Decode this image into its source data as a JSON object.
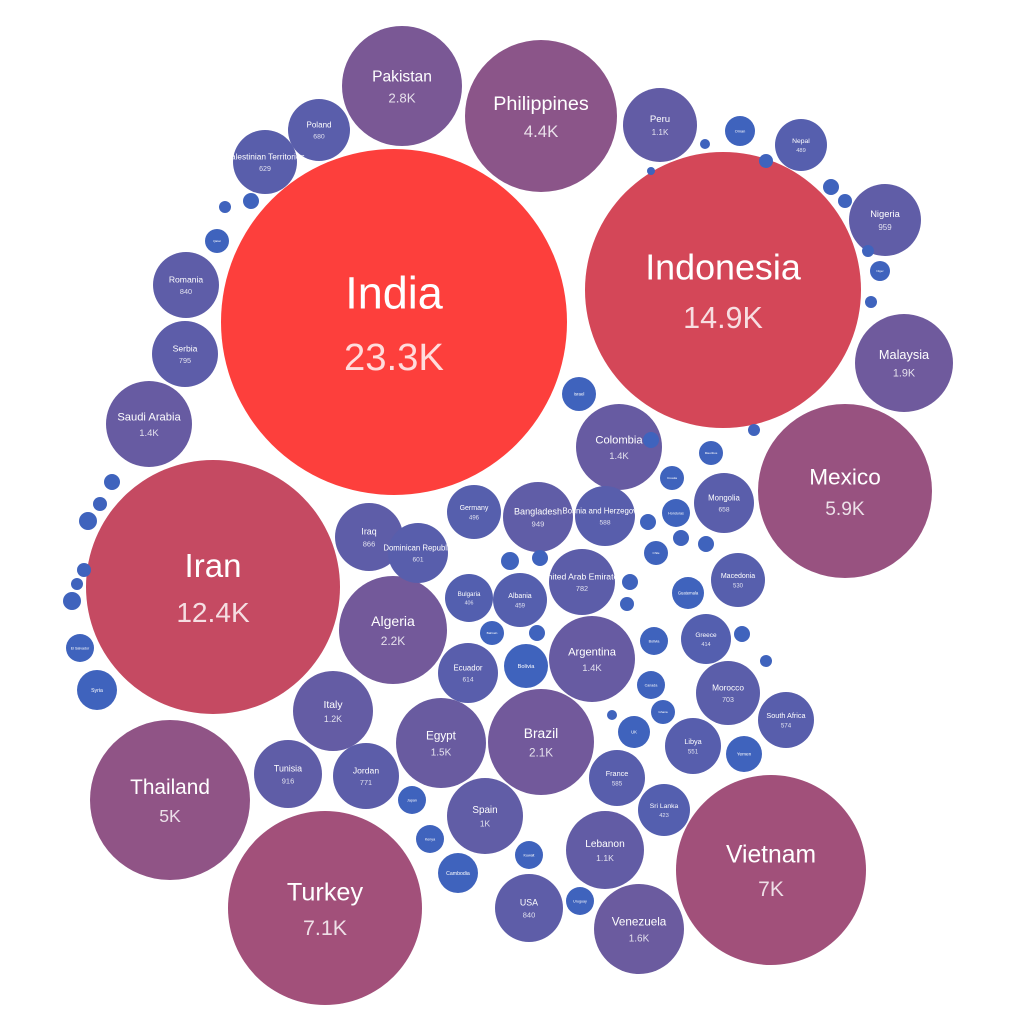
{
  "chart_data": {
    "type": "bubble",
    "title": "",
    "value_format": "K above 1000, 1 decimal, trailing .0 removed",
    "color_scale": {
      "low": "#3f63bd",
      "high": "#fd3f3c"
    },
    "bubbles": [
      {
        "name": "India",
        "value": 23300
      },
      {
        "name": "Indonesia",
        "value": 14900
      },
      {
        "name": "Iran",
        "value": 12400
      },
      {
        "name": "Turkey",
        "value": 7100
      },
      {
        "name": "Vietnam",
        "value": 7000
      },
      {
        "name": "Mexico",
        "value": 5900
      },
      {
        "name": "Thailand",
        "value": 5000
      },
      {
        "name": "Philippines",
        "value": 4400
      },
      {
        "name": "Pakistan",
        "value": 2800
      },
      {
        "name": "Algeria",
        "value": 2200
      },
      {
        "name": "Brazil",
        "value": 2100
      },
      {
        "name": "Malaysia",
        "value": 1900
      },
      {
        "name": "Venezuela",
        "value": 1600
      },
      {
        "name": "Egypt",
        "value": 1500
      },
      {
        "name": "Saudi Arabia",
        "value": 1400
      },
      {
        "name": "Colombia",
        "value": 1400
      },
      {
        "name": "Argentina",
        "value": 1400
      },
      {
        "name": "Italy",
        "value": 1200
      },
      {
        "name": "Peru",
        "value": 1100
      },
      {
        "name": "Lebanon",
        "value": 1100
      },
      {
        "name": "Spain",
        "value": 1000
      },
      {
        "name": "Nigeria",
        "value": 959
      },
      {
        "name": "Bangladesh",
        "value": 949
      },
      {
        "name": "Tunisia",
        "value": 916
      },
      {
        "name": "Iraq",
        "value": 866
      },
      {
        "name": "Romania",
        "value": 840
      },
      {
        "name": "USA",
        "value": 840
      },
      {
        "name": "Serbia",
        "value": 795
      },
      {
        "name": "United Arab Emirates",
        "value": 782
      },
      {
        "name": "Jordan",
        "value": 771
      },
      {
        "name": "Morocco",
        "value": 703
      },
      {
        "name": "Poland",
        "value": 680
      },
      {
        "name": "Mongolia",
        "value": 658
      },
      {
        "name": "Palestinian Territories",
        "value": 629
      },
      {
        "name": "Ecuador",
        "value": 614
      },
      {
        "name": "Dominican Republic",
        "value": 601
      },
      {
        "name": "Bosnia and Herzegovina",
        "value": 588
      },
      {
        "name": "France",
        "value": 585
      },
      {
        "name": "South Africa",
        "value": 574
      },
      {
        "name": "Libya",
        "value": 551
      },
      {
        "name": "Macedonia",
        "value": 530
      },
      {
        "name": "Germany",
        "value": 496
      },
      {
        "name": "Nepal",
        "value": 489
      },
      {
        "name": "Albania",
        "value": 459
      },
      {
        "name": "Sri Lanka",
        "value": 423
      },
      {
        "name": "Greece",
        "value": 414
      },
      {
        "name": "Bulgaria",
        "value": 406
      },
      {
        "name": "Yemen",
        "value": 0
      },
      {
        "name": "Syria",
        "value": 0
      },
      {
        "name": "Israel",
        "value": 0
      },
      {
        "name": "UK",
        "value": 0
      },
      {
        "name": "Oman",
        "value": 0
      },
      {
        "name": "Bolivia",
        "value": 0
      },
      {
        "name": "Kenya",
        "value": 0
      },
      {
        "name": "Japan",
        "value": 0
      },
      {
        "name": "Cambodia",
        "value": 0
      },
      {
        "name": "Kuwait",
        "value": 0
      },
      {
        "name": "Uruguay",
        "value": 0
      },
      {
        "name": "Canada",
        "value": 0
      },
      {
        "name": "Ghana",
        "value": 0
      },
      {
        "name": "Honduras",
        "value": 0
      },
      {
        "name": "Croatia",
        "value": 0
      },
      {
        "name": "Mauritius",
        "value": 0
      },
      {
        "name": "Chile",
        "value": 0
      },
      {
        "name": "Guatemala",
        "value": 0
      },
      {
        "name": "Qatar",
        "value": 0
      },
      {
        "name": "Bahrain",
        "value": 0
      },
      {
        "name": "El Salvador",
        "value": 0
      },
      {
        "name": "Niger",
        "value": 0
      },
      {
        "name": "Portugal",
        "value": 0
      },
      {
        "name": "Belgium",
        "value": 0
      },
      {
        "name": "Hungary",
        "value": 0
      },
      {
        "name": "Austria",
        "value": 0
      },
      {
        "name": "Singapore",
        "value": 0
      },
      {
        "name": "Paraguay",
        "value": 0
      },
      {
        "name": "Sudan",
        "value": 0
      },
      {
        "name": "Afghanistan",
        "value": 0
      },
      {
        "name": "Cameroon",
        "value": 0
      },
      {
        "name": "South Korea",
        "value": 0
      },
      {
        "name": "Costa Rica",
        "value": 0
      },
      {
        "name": "Panama",
        "value": 0
      },
      {
        "name": "Australia",
        "value": 0
      },
      {
        "name": "Bolivia2",
        "value": 0
      },
      {
        "name": "Malta",
        "value": 0
      },
      {
        "name": "Slovakia",
        "value": 0
      },
      {
        "name": "Djibouti",
        "value": 0
      },
      {
        "name": "Somalia",
        "value": 0
      },
      {
        "name": "Hong Kong",
        "value": 0
      },
      {
        "name": "Kyrgyzstan",
        "value": 0
      },
      {
        "name": "Sweden",
        "value": 0
      },
      {
        "name": "Iceland",
        "value": 0
      },
      {
        "name": "Montenegro",
        "value": 0
      },
      {
        "name": "Palestine",
        "value": 0
      },
      {
        "name": "Taiwan",
        "value": 0
      },
      {
        "name": "Armenia",
        "value": 0
      },
      {
        "name": "Czechia",
        "value": 0
      },
      {
        "name": "Luxembourg",
        "value": 0
      },
      {
        "name": "Finland",
        "value": 0
      }
    ]
  }
}
